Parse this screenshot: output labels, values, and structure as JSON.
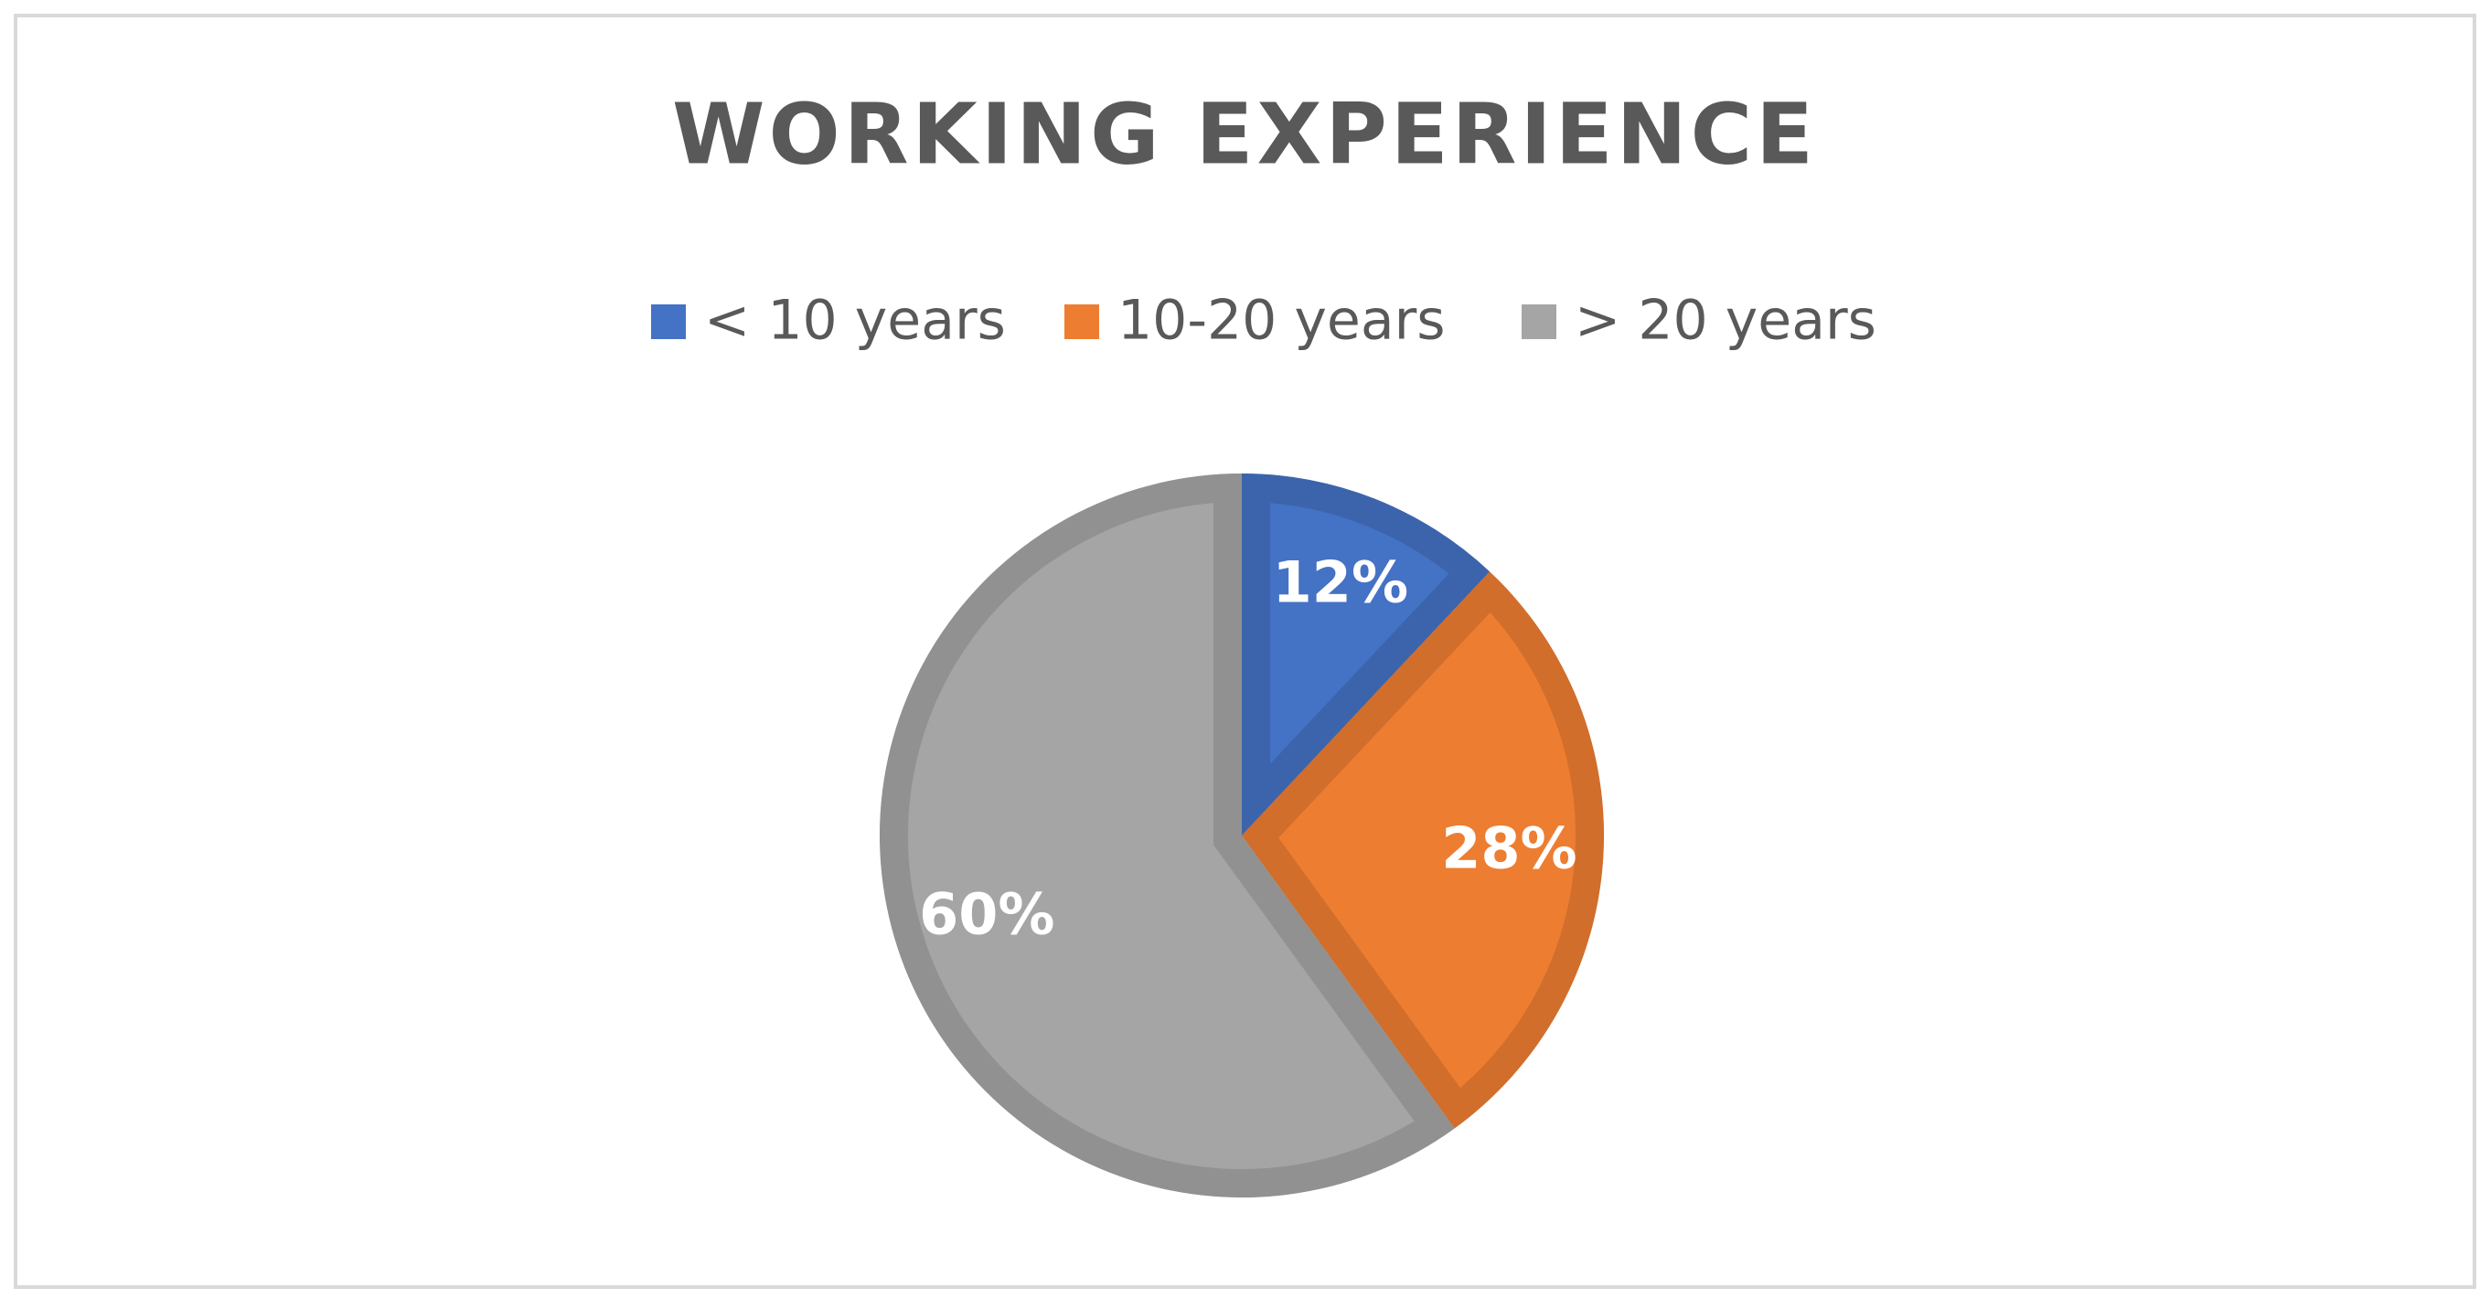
{
  "chart_data": {
    "type": "pie",
    "title": "WORKING EXPERIENCE",
    "categories": [
      "< 10 years",
      "10-20 years",
      "> 20 years"
    ],
    "values": [
      12,
      28,
      60
    ],
    "value_labels": [
      "12%",
      "28%",
      "60%"
    ],
    "colors": [
      "#4472c4",
      "#ed7d31",
      "#a5a5a5"
    ]
  }
}
